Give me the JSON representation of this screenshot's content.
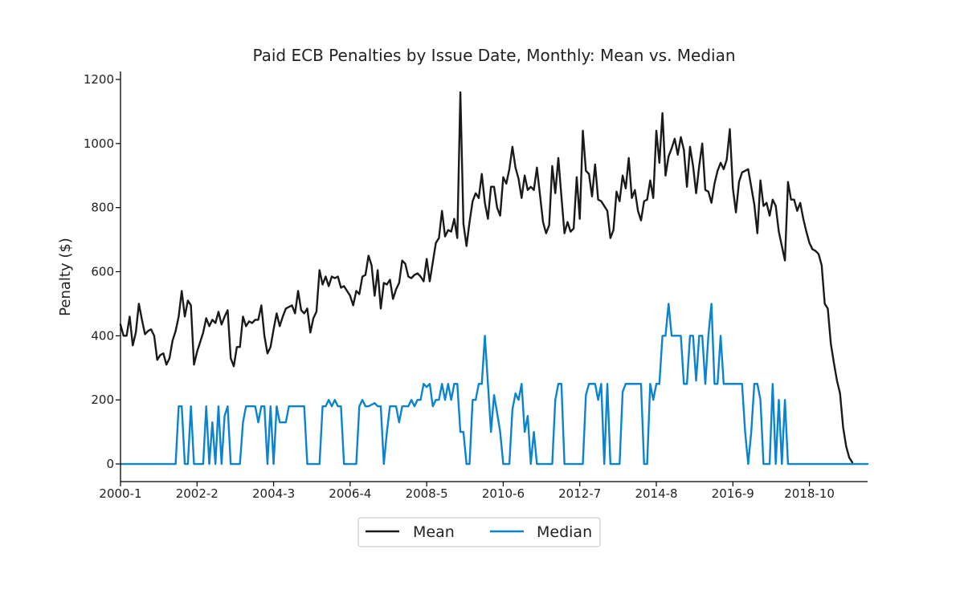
{
  "chart_data": {
    "type": "line",
    "title": "Paid ECB Penalties by Issue Date, Monthly: Mean vs. Median",
    "xlabel": "",
    "ylabel": "Penalty ($)",
    "x_start": "2000-1",
    "xticks": [
      "2000-1",
      "2002-2",
      "2004-3",
      "2006-4",
      "2008-5",
      "2010-6",
      "2012-7",
      "2014-8",
      "2016-9",
      "2018-10"
    ],
    "yticks": [
      0,
      200,
      400,
      600,
      800,
      1000,
      1200
    ],
    "ylim": [
      -55,
      1225
    ],
    "grid": false,
    "legend_position": "bottom-center",
    "colors": {
      "Mean": "#1a1a1a",
      "Median": "#0a84d0"
    },
    "series": [
      {
        "name": "Mean",
        "values": [
          435,
          400,
          400,
          460,
          370,
          410,
          500,
          450,
          405,
          415,
          420,
          400,
          325,
          340,
          345,
          310,
          330,
          385,
          415,
          460,
          540,
          460,
          510,
          495,
          310,
          350,
          380,
          410,
          455,
          430,
          450,
          440,
          475,
          435,
          460,
          480,
          330,
          305,
          365,
          365,
          460,
          430,
          445,
          440,
          450,
          450,
          495,
          400,
          345,
          365,
          420,
          470,
          430,
          460,
          485,
          490,
          495,
          470,
          540,
          480,
          470,
          485,
          410,
          455,
          475,
          605,
          560,
          585,
          555,
          585,
          580,
          585,
          550,
          555,
          540,
          525,
          495,
          540,
          530,
          585,
          590,
          650,
          620,
          525,
          605,
          485,
          565,
          560,
          575,
          515,
          545,
          565,
          635,
          625,
          585,
          580,
          590,
          595,
          585,
          570,
          640,
          570,
          630,
          690,
          705,
          790,
          710,
          730,
          725,
          765,
          705,
          1160,
          750,
          680,
          755,
          820,
          845,
          830,
          905,
          815,
          765,
          865,
          865,
          800,
          775,
          895,
          875,
          920,
          990,
          925,
          890,
          830,
          900,
          855,
          865,
          855,
          925,
          840,
          755,
          720,
          745,
          930,
          845,
          955,
          835,
          720,
          755,
          725,
          735,
          895,
          765,
          1040,
          915,
          905,
          835,
          935,
          825,
          820,
          805,
          790,
          705,
          730,
          850,
          820,
          900,
          860,
          955,
          830,
          855,
          790,
          760,
          820,
          825,
          885,
          830,
          1040,
          940,
          1095,
          900,
          960,
          985,
          1015,
          965,
          1020,
          980,
          865,
          990,
          930,
          845,
          930,
          1000,
          855,
          850,
          815,
          875,
          915,
          940,
          920,
          950,
          1045,
          860,
          785,
          880,
          910,
          915,
          920,
          865,
          810,
          720,
          885,
          805,
          815,
          775,
          825,
          805,
          725,
          680,
          635,
          880,
          825,
          825,
          790,
          815,
          765,
          725,
          690,
          670,
          665,
          655,
          620,
          500,
          485,
          375,
          315,
          260,
          220,
          115,
          55,
          20,
          5
        ]
      },
      {
        "name": "Median",
        "values": [
          0,
          0,
          0,
          0,
          0,
          0,
          0,
          0,
          0,
          0,
          0,
          0,
          0,
          0,
          0,
          0,
          0,
          0,
          0,
          180,
          180,
          0,
          0,
          180,
          0,
          0,
          0,
          0,
          180,
          0,
          130,
          0,
          180,
          0,
          150,
          180,
          0,
          0,
          0,
          0,
          130,
          180,
          180,
          180,
          180,
          130,
          180,
          180,
          0,
          180,
          0,
          180,
          130,
          130,
          130,
          180,
          180,
          180,
          180,
          180,
          180,
          0,
          0,
          0,
          0,
          0,
          180,
          180,
          200,
          180,
          200,
          180,
          180,
          0,
          0,
          0,
          0,
          0,
          180,
          200,
          180,
          180,
          185,
          190,
          180,
          180,
          0,
          100,
          180,
          180,
          180,
          130,
          180,
          180,
          180,
          200,
          180,
          200,
          200,
          250,
          240,
          250,
          180,
          200,
          200,
          250,
          200,
          250,
          200,
          250,
          250,
          100,
          100,
          0,
          0,
          200,
          200,
          250,
          250,
          400,
          250,
          100,
          215,
          160,
          100,
          0,
          0,
          0,
          170,
          220,
          200,
          250,
          100,
          150,
          0,
          100,
          0,
          0,
          0,
          0,
          0,
          0,
          200,
          250,
          250,
          0,
          0,
          0,
          0,
          0,
          0,
          0,
          215,
          250,
          250,
          250,
          200,
          250,
          0,
          250,
          0,
          0,
          0,
          0,
          225,
          250,
          250,
          250,
          250,
          250,
          250,
          0,
          0,
          250,
          200,
          250,
          250,
          400,
          400,
          500,
          400,
          400,
          400,
          400,
          250,
          250,
          400,
          400,
          260,
          400,
          400,
          250,
          400,
          500,
          250,
          250,
          400,
          250,
          250,
          250,
          250,
          250,
          250,
          250,
          100,
          0,
          100,
          250,
          250,
          200,
          0,
          0,
          0,
          250,
          0,
          200,
          0,
          200,
          0,
          0,
          0,
          0,
          0,
          0,
          0,
          0,
          0,
          0,
          0,
          0,
          0,
          0,
          0,
          0,
          0,
          0,
          0,
          0,
          0,
          0,
          0,
          0,
          0,
          0,
          0
        ]
      }
    ]
  }
}
